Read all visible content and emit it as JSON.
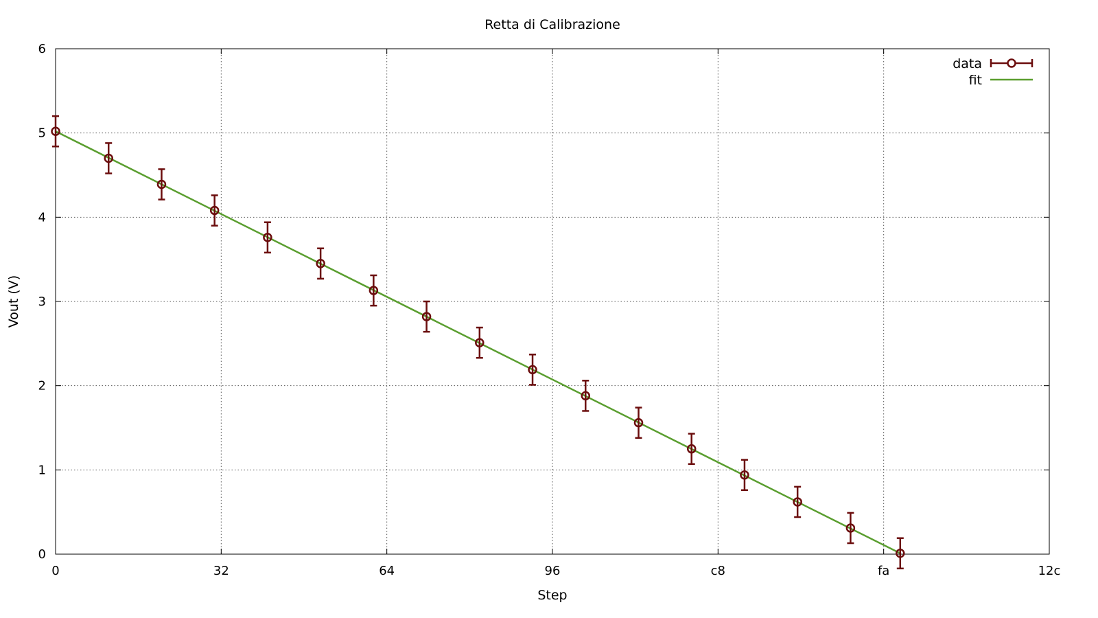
{
  "chart_data": {
    "type": "scatter",
    "title": "Retta di Calibrazione",
    "xlabel": "Step",
    "ylabel": "Vout (V)",
    "xlim": [
      0,
      300
    ],
    "ylim": [
      0,
      6
    ],
    "x_ticks": [
      {
        "value": 0,
        "label": "0"
      },
      {
        "value": 50,
        "label": "32"
      },
      {
        "value": 100,
        "label": "64"
      },
      {
        "value": 150,
        "label": "96"
      },
      {
        "value": 200,
        "label": "c8"
      },
      {
        "value": 250,
        "label": "fa"
      },
      {
        "value": 300,
        "label": "12c"
      }
    ],
    "y_ticks": [
      {
        "value": 0,
        "label": "0"
      },
      {
        "value": 1,
        "label": "1"
      },
      {
        "value": 2,
        "label": "2"
      },
      {
        "value": 3,
        "label": "3"
      },
      {
        "value": 4,
        "label": "4"
      },
      {
        "value": 5,
        "label": "5"
      },
      {
        "value": 6,
        "label": "6"
      }
    ],
    "grid": true,
    "legend_position": "top-right",
    "series": [
      {
        "name": "data",
        "kind": "points-with-errorbars",
        "color": "#6b0d0d",
        "points": [
          {
            "x": 0,
            "y": 5.02,
            "err": 0.18
          },
          {
            "x": 16,
            "y": 4.7,
            "err": 0.18
          },
          {
            "x": 32,
            "y": 4.39,
            "err": 0.18
          },
          {
            "x": 48,
            "y": 4.08,
            "err": 0.18
          },
          {
            "x": 64,
            "y": 3.76,
            "err": 0.18
          },
          {
            "x": 80,
            "y": 3.45,
            "err": 0.18
          },
          {
            "x": 96,
            "y": 3.13,
            "err": 0.18
          },
          {
            "x": 112,
            "y": 2.82,
            "err": 0.18
          },
          {
            "x": 128,
            "y": 2.51,
            "err": 0.18
          },
          {
            "x": 144,
            "y": 2.19,
            "err": 0.18
          },
          {
            "x": 160,
            "y": 1.88,
            "err": 0.18
          },
          {
            "x": 176,
            "y": 1.56,
            "err": 0.18
          },
          {
            "x": 192,
            "y": 1.25,
            "err": 0.18
          },
          {
            "x": 208,
            "y": 0.94,
            "err": 0.18
          },
          {
            "x": 224,
            "y": 0.62,
            "err": 0.18
          },
          {
            "x": 240,
            "y": 0.31,
            "err": 0.18
          },
          {
            "x": 255,
            "y": 0.01,
            "err": 0.18
          }
        ]
      },
      {
        "name": "fit",
        "kind": "line",
        "color": "#5a9e2f",
        "x": [
          0,
          255
        ],
        "y": [
          5.02,
          0.01
        ]
      }
    ]
  }
}
